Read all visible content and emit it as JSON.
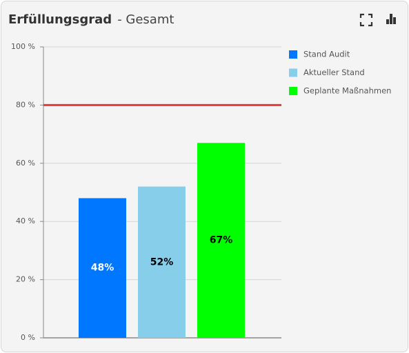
{
  "chart_data": {
    "type": "bar",
    "title": "Erfüllungsgrad",
    "subtitle": "- Gesamt",
    "series": [
      {
        "name": "Stand Audit",
        "color": "#0077ff",
        "label_color": "#ffffff",
        "values": [
          48
        ],
        "value_labels": [
          "48%"
        ]
      },
      {
        "name": "Aktueller Stand",
        "color": "#87ceeb",
        "label_color": "#000000",
        "values": [
          52
        ],
        "value_labels": [
          "52%"
        ]
      },
      {
        "name": "Geplante Maßnahmen",
        "color": "#00ff00",
        "label_color": "#000000",
        "values": [
          67
        ],
        "value_labels": [
          "67%"
        ]
      }
    ],
    "ylim": [
      0,
      100
    ],
    "yticks": [
      {
        "value": 0,
        "label": "0 %"
      },
      {
        "value": 20,
        "label": "20 %"
      },
      {
        "value": 40,
        "label": "40 %"
      },
      {
        "value": 60,
        "label": "60 %"
      },
      {
        "value": 80,
        "label": "80 %"
      },
      {
        "value": 100,
        "label": "100 %"
      }
    ],
    "grid": true,
    "reference_line": {
      "value": 80,
      "color": "#e53935"
    },
    "legend": "right"
  }
}
